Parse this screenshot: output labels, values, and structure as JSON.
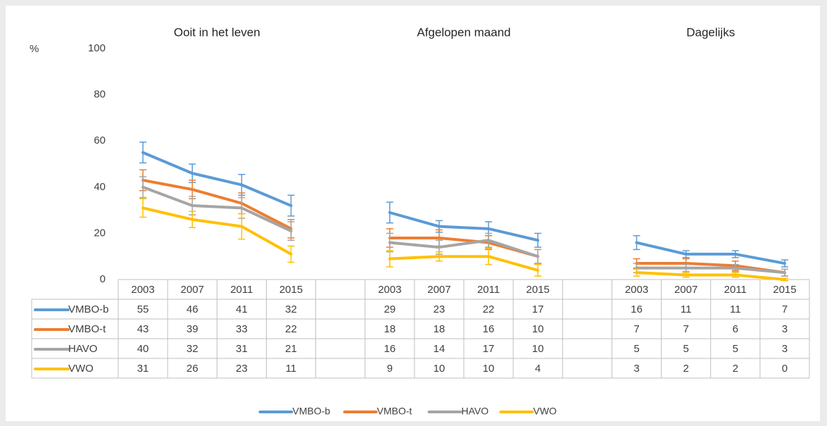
{
  "chart_data": {
    "type": "line",
    "y_label": "%",
    "group_labels": [
      "Ooit in het leven",
      "Afgelopen maand",
      "Dagelijks"
    ],
    "categories": [
      "2003",
      "2007",
      "2011",
      "2015",
      null,
      "2003",
      "2007",
      "2011",
      "2015",
      null,
      "2003",
      "2007",
      "2011",
      "2015"
    ],
    "series": [
      {
        "name": "VMBO-b",
        "color": "#5b9bd5",
        "values": [
          55,
          46,
          41,
          32,
          null,
          29,
          23,
          22,
          17,
          null,
          16,
          11,
          11,
          7
        ],
        "errors": [
          4.5,
          4,
          4.5,
          4.5,
          null,
          4.5,
          2.5,
          3,
          3,
          null,
          3,
          1.5,
          1.5,
          1.5
        ]
      },
      {
        "name": "VMBO-t",
        "color": "#ed7d31",
        "values": [
          43,
          39,
          33,
          22,
          null,
          18,
          18,
          16,
          10,
          null,
          7,
          7,
          6,
          3
        ],
        "errors": [
          4.5,
          4,
          4.5,
          4,
          null,
          4,
          3.5,
          3,
          3,
          null,
          2,
          2,
          2,
          1.5
        ]
      },
      {
        "name": "HAVO",
        "color": "#a5a5a5",
        "values": [
          40,
          32,
          31,
          21,
          null,
          16,
          14,
          17,
          10,
          null,
          5,
          5,
          5,
          3
        ],
        "errors": [
          4.5,
          4,
          4.5,
          4,
          null,
          4,
          3,
          3,
          3,
          null,
          2,
          1.5,
          1.5,
          1.5
        ]
      },
      {
        "name": "VWO",
        "color": "#ffc000",
        "values": [
          31,
          26,
          23,
          11,
          null,
          9,
          10,
          10,
          4,
          null,
          3,
          2,
          2,
          0
        ],
        "errors": [
          4,
          3.5,
          5.5,
          3.5,
          null,
          3.5,
          2,
          3.5,
          2.5,
          null,
          1.5,
          1,
          1,
          0.5
        ]
      }
    ],
    "ylim": [
      0,
      100
    ],
    "yticks": [
      0,
      20,
      40,
      60,
      80,
      100
    ],
    "grid": false,
    "legend": "bottom"
  }
}
